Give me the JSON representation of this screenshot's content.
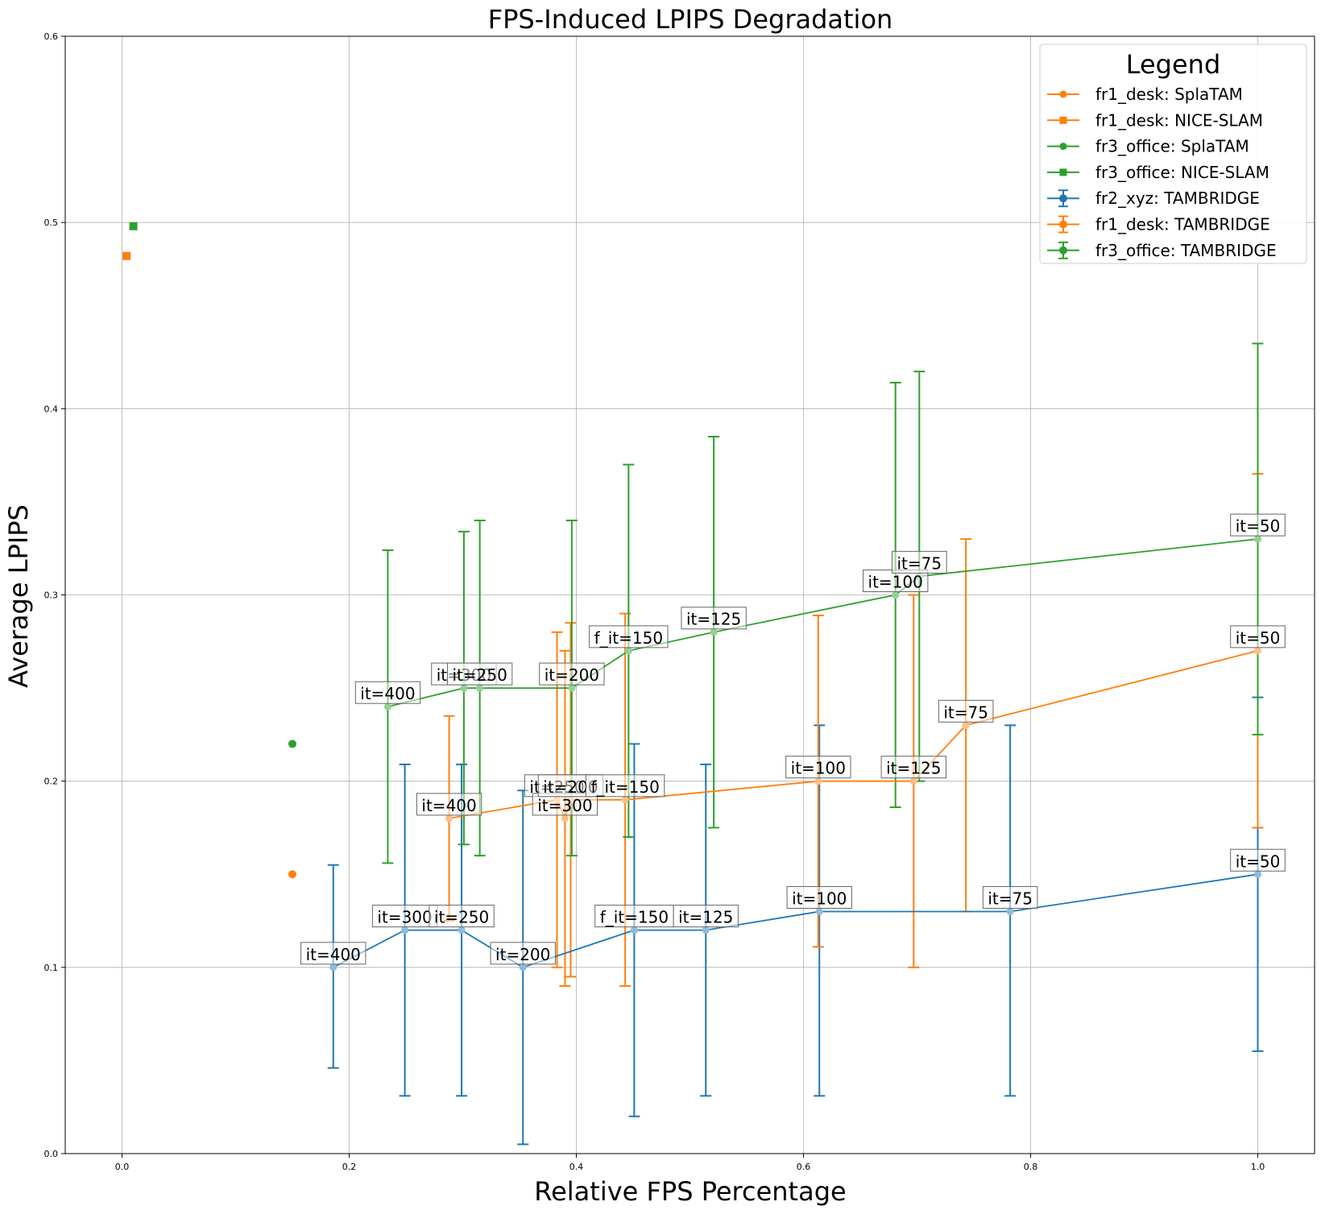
{
  "chart_data": {
    "type": "scatter",
    "title": "FPS-Induced LPIPS Degradation",
    "xlabel": "Relative FPS Percentage",
    "ylabel": "Average LPIPS",
    "xlim": [
      -0.05,
      1.05
    ],
    "ylim": [
      0.0,
      0.6
    ],
    "xticks": [
      "0.0",
      "0.2",
      "0.4",
      "0.6",
      "0.8",
      "1.0"
    ],
    "yticks": [
      "0.0",
      "0.1",
      "0.2",
      "0.3",
      "0.4",
      "0.5",
      "0.6"
    ],
    "grid": true,
    "legend": {
      "title": "Legend",
      "location": "upper right"
    },
    "colors": {
      "blue": "#1f77b4",
      "orange": "#ff7f0e",
      "green": "#2ca02c"
    },
    "scatter_series": [
      {
        "name": "fr1_desk: SplaTAM",
        "color": "#ff7f0e",
        "marker": "circle",
        "x": 0.15,
        "y": 0.15
      },
      {
        "name": "fr1_desk: NICE-SLAM",
        "color": "#ff7f0e",
        "marker": "square",
        "x": 0.004,
        "y": 0.482
      },
      {
        "name": "fr3_office: SplaTAM",
        "color": "#2ca02c",
        "marker": "circle",
        "x": 0.15,
        "y": 0.22
      },
      {
        "name": "fr3_office: NICE-SLAM",
        "color": "#2ca02c",
        "marker": "square",
        "x": 0.01,
        "y": 0.498
      }
    ],
    "errorbar_series": [
      {
        "name": "fr2_xyz: TAMBRIDGE",
        "color": "#1f77b4",
        "points": [
          {
            "x": 0.186,
            "y": 0.1,
            "lo": 0.046,
            "hi": 0.155,
            "label": "it=400"
          },
          {
            "x": 0.249,
            "y": 0.12,
            "lo": 0.031,
            "hi": 0.209,
            "label": "it=300"
          },
          {
            "x": 0.299,
            "y": 0.12,
            "lo": 0.031,
            "hi": 0.209,
            "label": "it=250"
          },
          {
            "x": 0.353,
            "y": 0.1,
            "lo": 0.005,
            "hi": 0.195,
            "label": "it=200"
          },
          {
            "x": 0.451,
            "y": 0.12,
            "lo": 0.02,
            "hi": 0.22,
            "label": "f_it=150"
          },
          {
            "x": 0.514,
            "y": 0.12,
            "lo": 0.031,
            "hi": 0.209,
            "label": "it=125"
          },
          {
            "x": 0.614,
            "y": 0.13,
            "lo": 0.031,
            "hi": 0.23,
            "label": "it=100"
          },
          {
            "x": 0.782,
            "y": 0.13,
            "lo": 0.031,
            "hi": 0.23,
            "label": "it=75"
          },
          {
            "x": 1.0,
            "y": 0.15,
            "lo": 0.055,
            "hi": 0.245,
            "label": "it=50"
          }
        ]
      },
      {
        "name": "fr1_desk: TAMBRIDGE",
        "color": "#ff7f0e",
        "points": [
          {
            "x": 0.288,
            "y": 0.18,
            "lo": 0.125,
            "hi": 0.235,
            "label": "it=400"
          },
          {
            "x": 0.383,
            "y": 0.19,
            "lo": 0.1,
            "hi": 0.28,
            "label": "it=250"
          },
          {
            "x": 0.39,
            "y": 0.18,
            "lo": 0.09,
            "hi": 0.27,
            "label": "it=300"
          },
          {
            "x": 0.395,
            "y": 0.19,
            "lo": 0.095,
            "hi": 0.285,
            "label": "it=200"
          },
          {
            "x": 0.443,
            "y": 0.19,
            "lo": 0.09,
            "hi": 0.29,
            "label": "f_it=150"
          },
          {
            "x": 0.613,
            "y": 0.2,
            "lo": 0.111,
            "hi": 0.289,
            "label": "it=100"
          },
          {
            "x": 0.697,
            "y": 0.2,
            "lo": 0.1,
            "hi": 0.3,
            "label": "it=125"
          },
          {
            "x": 0.743,
            "y": 0.23,
            "lo": 0.13,
            "hi": 0.33,
            "label": "it=75"
          },
          {
            "x": 1.0,
            "y": 0.27,
            "lo": 0.175,
            "hi": 0.365,
            "label": "it=50"
          }
        ]
      },
      {
        "name": "fr3_office: TAMBRIDGE",
        "color": "#2ca02c",
        "points": [
          {
            "x": 0.234,
            "y": 0.24,
            "lo": 0.156,
            "hi": 0.324,
            "label": "it=400"
          },
          {
            "x": 0.301,
            "y": 0.25,
            "lo": 0.166,
            "hi": 0.334,
            "label": "it=300"
          },
          {
            "x": 0.315,
            "y": 0.25,
            "lo": 0.16,
            "hi": 0.34,
            "label": "it=250"
          },
          {
            "x": 0.396,
            "y": 0.25,
            "lo": 0.16,
            "hi": 0.34,
            "label": "it=200"
          },
          {
            "x": 0.446,
            "y": 0.27,
            "lo": 0.17,
            "hi": 0.37,
            "label": "f_it=150"
          },
          {
            "x": 0.521,
            "y": 0.28,
            "lo": 0.175,
            "hi": 0.385,
            "label": "it=125"
          },
          {
            "x": 0.681,
            "y": 0.3,
            "lo": 0.186,
            "hi": 0.414,
            "label": "it=100"
          },
          {
            "x": 0.702,
            "y": 0.31,
            "lo": 0.2,
            "hi": 0.42,
            "label": "it=75"
          },
          {
            "x": 1.0,
            "y": 0.33,
            "lo": 0.225,
            "hi": 0.435,
            "label": "it=50"
          }
        ]
      }
    ]
  }
}
